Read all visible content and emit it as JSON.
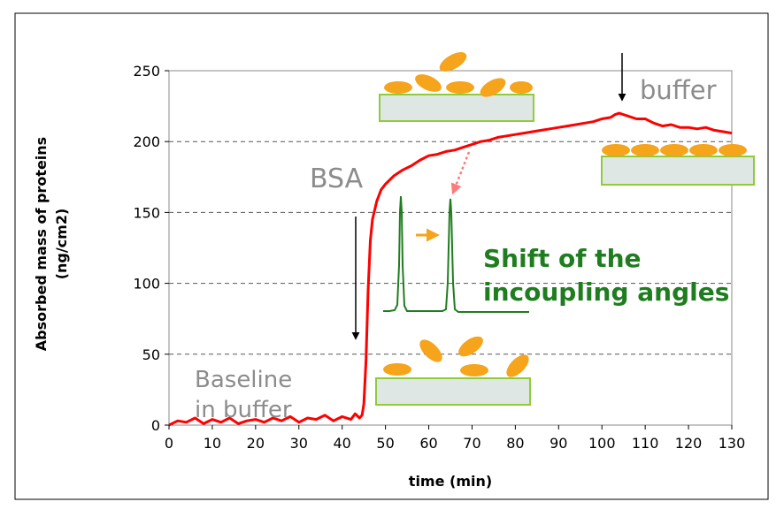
{
  "chart_data": {
    "type": "line",
    "xlabel": "time (min)",
    "ylabel_line1": "Absorbed mass of proteins",
    "ylabel_line2": "(ng/cm2)",
    "xlim": [
      0,
      130
    ],
    "ylim": [
      0,
      250
    ],
    "x_ticks": [
      "0",
      "10",
      "20",
      "30",
      "40",
      "50",
      "60",
      "70",
      "80",
      "90",
      "100",
      "110",
      "120",
      "130"
    ],
    "y_ticks": [
      "0",
      "50",
      "100",
      "150",
      "200",
      "250"
    ],
    "grid": "horizontal dashed",
    "series": [
      {
        "color": "#ff0000",
        "x": [
          0,
          2,
          4,
          6,
          8,
          10,
          12,
          14,
          16,
          18,
          20,
          22,
          24,
          26,
          28,
          30,
          32,
          34,
          36,
          38,
          40,
          42,
          43,
          44,
          44.6,
          45,
          45.5,
          46,
          46.5,
          47,
          48,
          49,
          50,
          52,
          54,
          56,
          58,
          60,
          62,
          64,
          66,
          68,
          70,
          72,
          74,
          76,
          78,
          80,
          82,
          84,
          86,
          88,
          90,
          92,
          94,
          96,
          98,
          100,
          102,
          103,
          104,
          106,
          108,
          110,
          112,
          114,
          116,
          118,
          120,
          122,
          124,
          126,
          128,
          130
        ],
        "y": [
          0,
          3,
          2,
          5,
          1,
          4,
          2,
          5,
          1,
          3,
          4,
          2,
          5,
          3,
          6,
          2,
          5,
          4,
          7,
          3,
          6,
          4,
          8,
          5,
          7,
          15,
          45,
          95,
          130,
          145,
          158,
          166,
          170,
          176,
          180,
          183,
          187,
          190,
          191,
          193,
          194,
          196,
          198,
          200,
          201,
          203,
          204,
          205,
          206,
          207,
          208,
          209,
          210,
          211,
          212,
          213,
          214,
          216,
          217,
          219,
          220,
          218,
          216,
          216,
          213,
          211,
          212,
          210,
          210,
          209,
          210,
          208,
          207,
          206
        ]
      }
    ],
    "annotations": {
      "bsa": "BSA",
      "buffer": "buffer",
      "baseline_line1": "Baseline",
      "baseline_line2": "in buffer",
      "shift_line1": "Shift of the",
      "shift_line2": "incoupling angles"
    }
  },
  "colors": {
    "curve": "#ff0000",
    "ellipse": "#f5a41c",
    "substrate_fill": "#dfe7e4",
    "substrate_stroke": "#8fcc3a",
    "green": "#1f7d1f",
    "orange_arrow": "#f5a41c",
    "pink_arrow": "#ff7a7a",
    "grid": "#555555"
  }
}
